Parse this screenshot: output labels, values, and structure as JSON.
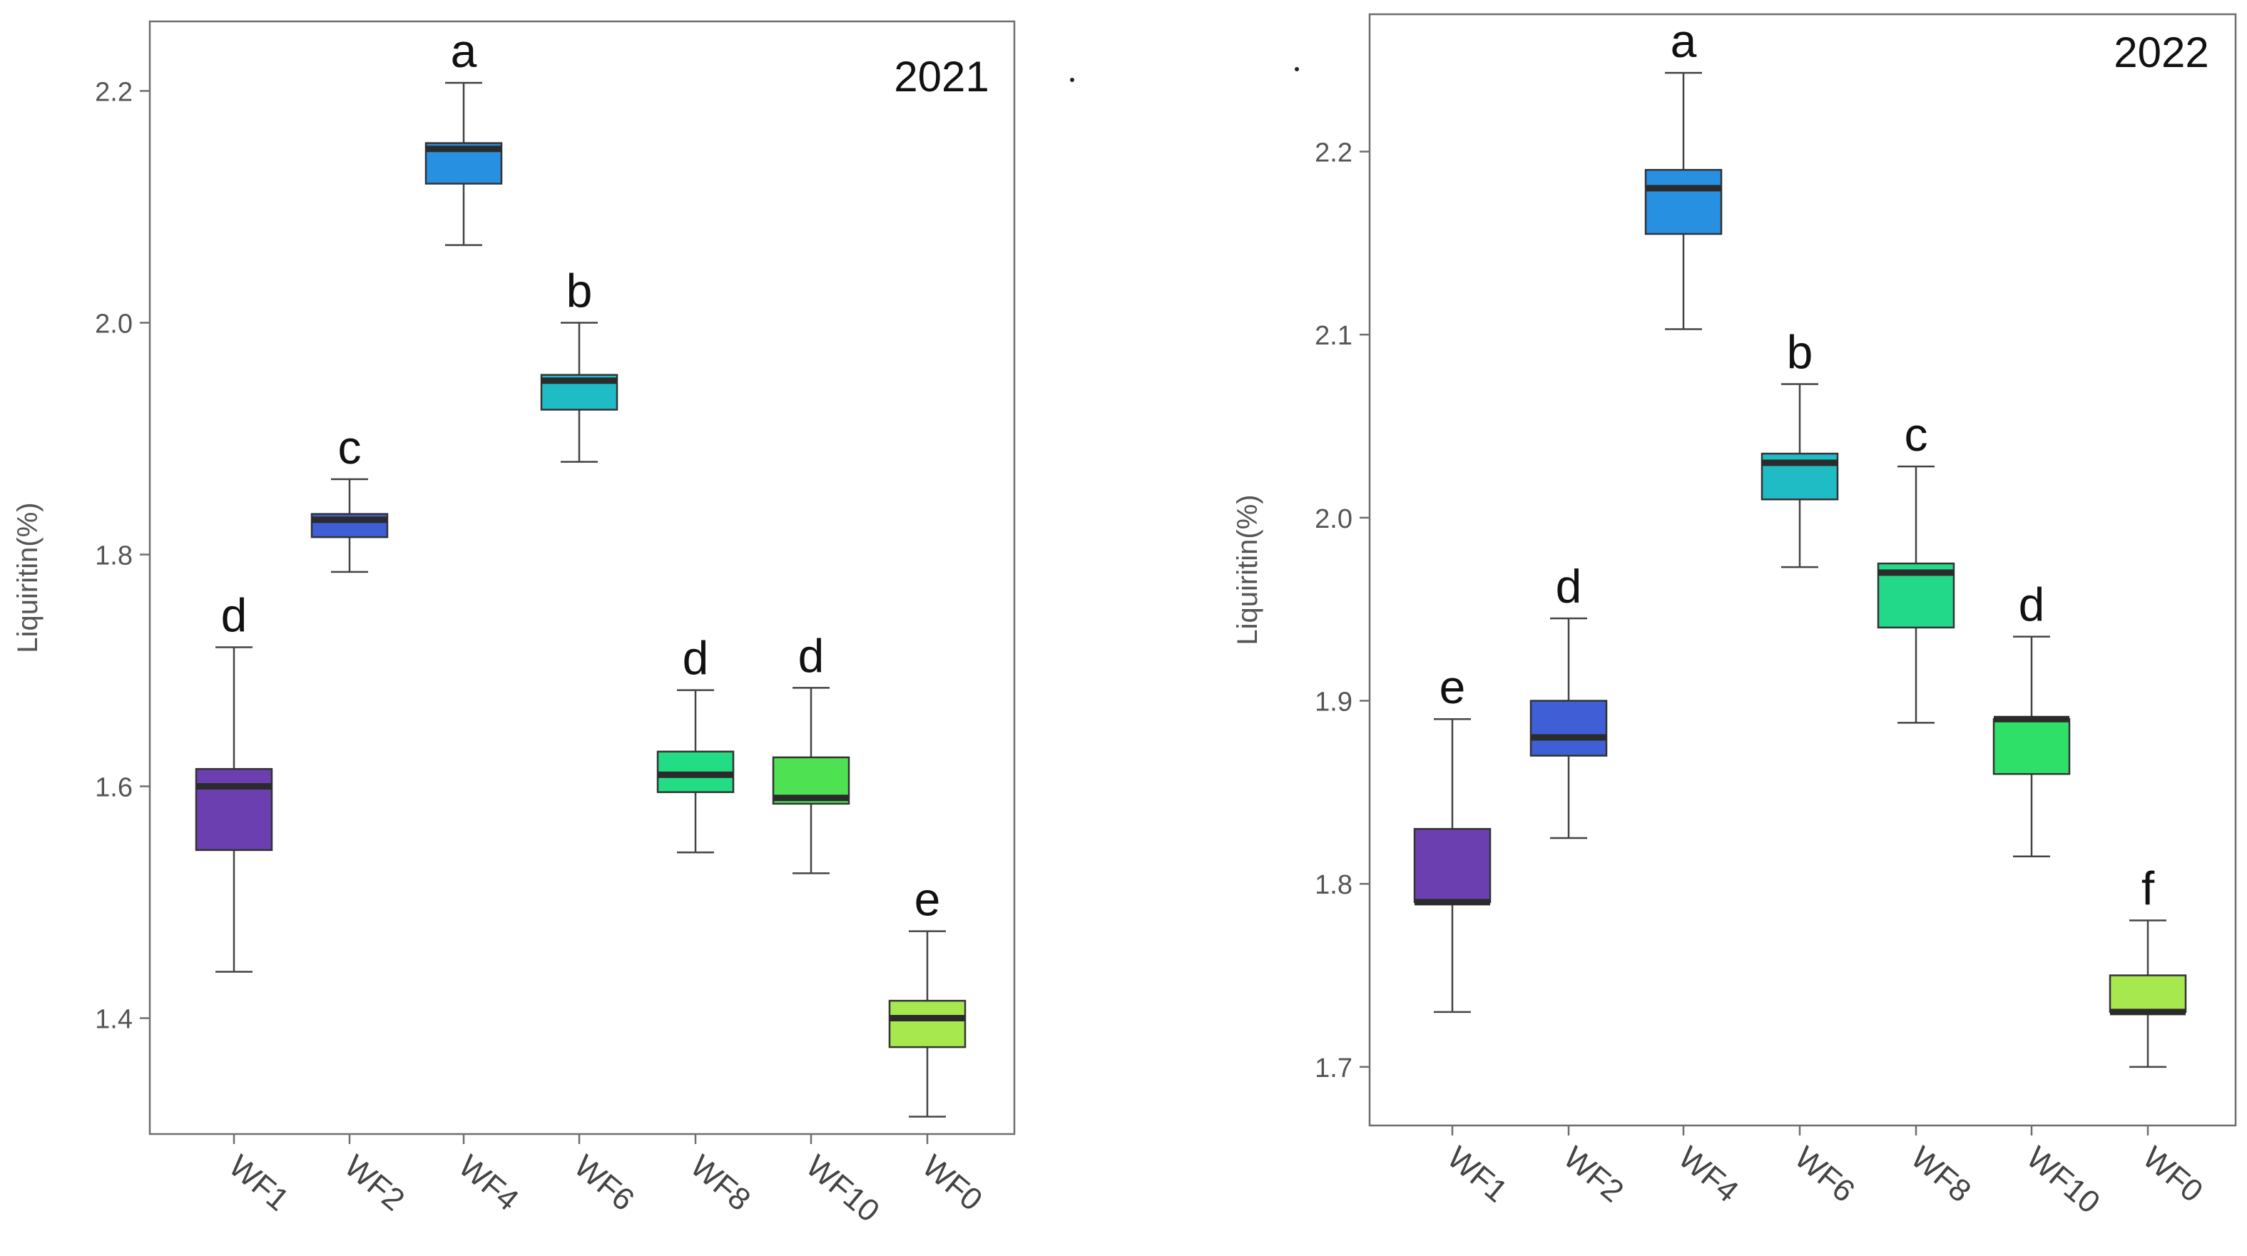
{
  "chart_data": [
    {
      "type": "box",
      "title": "2021",
      "ylabel": "Liquiritin(%)",
      "ylim": [
        1.3,
        2.26
      ],
      "yticks": [
        1.4,
        1.6,
        1.8,
        2.0,
        2.2
      ],
      "ytick_labels": [
        "1.4",
        "1.6",
        "1.8",
        "2.0",
        "2.2"
      ],
      "categories": [
        "WF1",
        "WF2",
        "WF4",
        "WF6",
        "WF8",
        "WF10",
        "WF0"
      ],
      "colors": [
        "#6b3fb0",
        "#3e5fd6",
        "#2790e0",
        "#1fbcc6",
        "#22dd84",
        "#4ee252",
        "#a6e84e"
      ],
      "letters": [
        "d",
        "c",
        "a",
        "b",
        "d",
        "d",
        "e"
      ],
      "boxes": [
        {
          "whisker_low": 1.44,
          "q1": 1.545,
          "median": 1.6,
          "q3": 1.615,
          "whisker_high": 1.72
        },
        {
          "whisker_low": 1.785,
          "q1": 1.815,
          "median": 1.83,
          "q3": 1.835,
          "whisker_high": 1.865
        },
        {
          "whisker_low": 2.067,
          "q1": 2.12,
          "median": 2.15,
          "q3": 2.155,
          "whisker_high": 2.207
        },
        {
          "whisker_low": 1.88,
          "q1": 1.925,
          "median": 1.95,
          "q3": 1.955,
          "whisker_high": 2.0
        },
        {
          "whisker_low": 1.543,
          "q1": 1.595,
          "median": 1.61,
          "q3": 1.63,
          "whisker_high": 1.683
        },
        {
          "whisker_low": 1.525,
          "q1": 1.585,
          "median": 1.59,
          "q3": 1.625,
          "whisker_high": 1.685
        },
        {
          "whisker_low": 1.315,
          "q1": 1.375,
          "median": 1.4,
          "q3": 1.415,
          "whisker_high": 1.475
        }
      ]
    },
    {
      "type": "box",
      "title": "2022",
      "ylabel": "Liquiritin(%)",
      "ylim": [
        1.668,
        2.275
      ],
      "yticks": [
        1.7,
        1.8,
        1.9,
        2.0,
        2.1,
        2.2
      ],
      "ytick_labels": [
        "1.7",
        "1.8",
        "1.9",
        "2.0",
        "2.1",
        "2.2"
      ],
      "categories": [
        "WF1",
        "WF2",
        "WF4",
        "WF6",
        "WF8",
        "WF10",
        "WF0"
      ],
      "colors": [
        "#6b3fb0",
        "#3e5fd6",
        "#2790e0",
        "#1fbcc6",
        "#22d98a",
        "#2fe068",
        "#a6e84e"
      ],
      "letters": [
        "e",
        "d",
        "a",
        "b",
        "c",
        "d",
        "f"
      ],
      "boxes": [
        {
          "whisker_low": 1.73,
          "q1": 1.79,
          "median": 1.79,
          "q3": 1.83,
          "whisker_high": 1.89
        },
        {
          "whisker_low": 1.825,
          "q1": 1.87,
          "median": 1.88,
          "q3": 1.9,
          "whisker_high": 1.945
        },
        {
          "whisker_low": 2.103,
          "q1": 2.155,
          "median": 2.18,
          "q3": 2.19,
          "whisker_high": 2.243
        },
        {
          "whisker_low": 1.973,
          "q1": 2.01,
          "median": 2.03,
          "q3": 2.035,
          "whisker_high": 2.073
        },
        {
          "whisker_low": 1.888,
          "q1": 1.94,
          "median": 1.97,
          "q3": 1.975,
          "whisker_high": 2.028
        },
        {
          "whisker_low": 1.815,
          "q1": 1.86,
          "median": 1.89,
          "q3": 1.89,
          "whisker_high": 1.935
        },
        {
          "whisker_low": 1.7,
          "q1": 1.73,
          "median": 1.73,
          "q3": 1.75,
          "whisker_high": 1.78
        }
      ]
    }
  ]
}
